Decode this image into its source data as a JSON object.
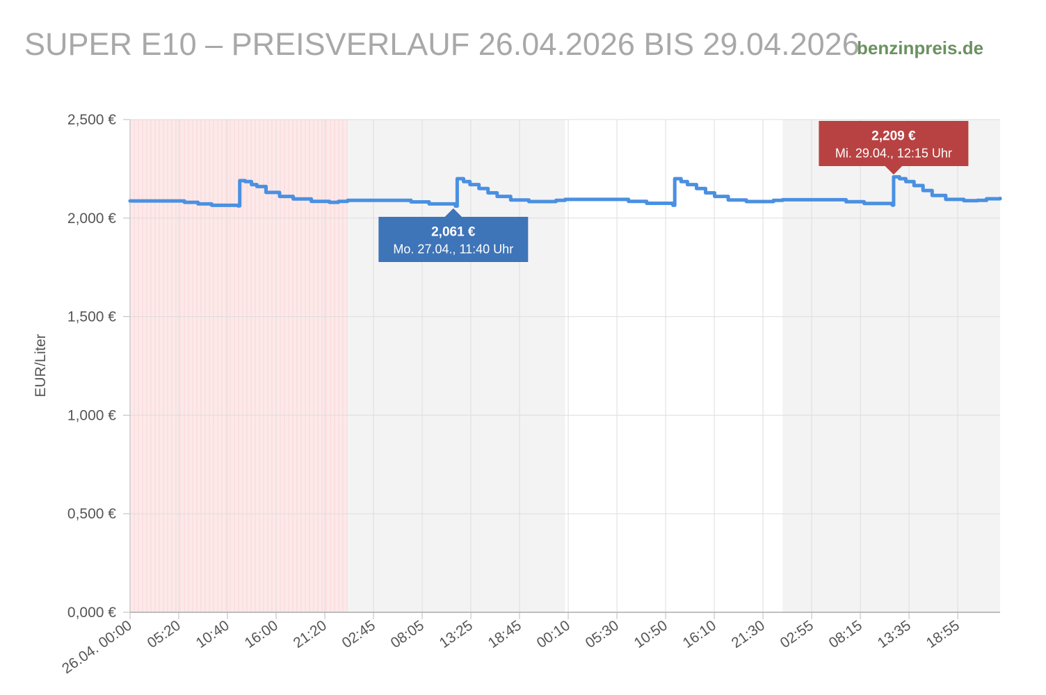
{
  "header": {
    "title": "SUPER E10 – PREISVERLAUF 26.04.2026 BIS 29.04.2026",
    "brand": "benzinpreis.de"
  },
  "colors": {
    "title": "#a8a8a8",
    "brand": "#6b9160",
    "line": "#4a90e2",
    "min_tooltip": "#3e74b8",
    "max_tooltip": "#b84242",
    "weekend_band": "#fde9e9",
    "day_band": "#f3f3f3",
    "grid": "#dddddd",
    "axis_text": "#555555"
  },
  "chart_data": {
    "type": "line",
    "title": "SUPER E10 – PREISVERLAUF 26.04.2026 BIS 29.04.2026",
    "xlabel": "",
    "ylabel": "EUR/Liter",
    "ylim": [
      0,
      2.5
    ],
    "yticks": [
      "0,000 €",
      "0,500 €",
      "1,000 €",
      "1,500 €",
      "2,000 €",
      "2,500 €"
    ],
    "xticks": [
      "26.04. 00:00",
      "05:20",
      "10:40",
      "16:00",
      "21:20",
      "02:45",
      "08:05",
      "13:25",
      "18:45",
      "00:10",
      "05:30",
      "10:50",
      "16:10",
      "21:30",
      "02:55",
      "08:15",
      "13:35",
      "18:55"
    ],
    "grid": true,
    "x_unit": "hours since 26.04. 00:00",
    "xlim": [
      0,
      96
    ],
    "bands": [
      {
        "start": 0,
        "end": 24,
        "kind": "sunday"
      },
      {
        "start": 24,
        "end": 48,
        "kind": "alternate"
      },
      {
        "start": 72,
        "end": 96,
        "kind": "alternate"
      }
    ],
    "series": [
      {
        "values": [
          [
            0,
            2.087
          ],
          [
            5.3,
            2.087
          ],
          [
            6.0,
            2.08
          ],
          [
            7.5,
            2.072
          ],
          [
            9.0,
            2.065
          ],
          [
            11.9,
            2.062
          ],
          [
            12.1,
            2.19
          ],
          [
            12.7,
            2.185
          ],
          [
            13.4,
            2.17
          ],
          [
            14.0,
            2.16
          ],
          [
            15.0,
            2.13
          ],
          [
            16.5,
            2.11
          ],
          [
            18.0,
            2.097
          ],
          [
            20.0,
            2.085
          ],
          [
            22.0,
            2.08
          ],
          [
            23.0,
            2.085
          ],
          [
            24.0,
            2.09
          ],
          [
            29.0,
            2.09
          ],
          [
            31.0,
            2.082
          ],
          [
            33.0,
            2.072
          ],
          [
            35.9,
            2.061
          ],
          [
            36.1,
            2.2
          ],
          [
            36.8,
            2.185
          ],
          [
            37.5,
            2.17
          ],
          [
            38.5,
            2.15
          ],
          [
            39.5,
            2.128
          ],
          [
            40.5,
            2.11
          ],
          [
            42.0,
            2.092
          ],
          [
            44.0,
            2.084
          ],
          [
            46.0,
            2.084
          ],
          [
            47.0,
            2.09
          ],
          [
            48.0,
            2.095
          ],
          [
            53.0,
            2.095
          ],
          [
            55.0,
            2.085
          ],
          [
            57.0,
            2.075
          ],
          [
            59.9,
            2.065
          ],
          [
            60.1,
            2.2
          ],
          [
            60.8,
            2.185
          ],
          [
            61.5,
            2.17
          ],
          [
            62.5,
            2.15
          ],
          [
            63.5,
            2.128
          ],
          [
            64.5,
            2.11
          ],
          [
            66.0,
            2.092
          ],
          [
            68.0,
            2.084
          ],
          [
            70.0,
            2.084
          ],
          [
            71.0,
            2.09
          ],
          [
            72.0,
            2.093
          ],
          [
            77.0,
            2.093
          ],
          [
            79.0,
            2.083
          ],
          [
            81.0,
            2.074
          ],
          [
            84.1,
            2.066
          ],
          [
            84.25,
            2.209
          ],
          [
            84.9,
            2.2
          ],
          [
            85.6,
            2.185
          ],
          [
            86.5,
            2.165
          ],
          [
            87.5,
            2.14
          ],
          [
            88.5,
            2.115
          ],
          [
            90.0,
            2.095
          ],
          [
            92.0,
            2.088
          ],
          [
            93.5,
            2.09
          ],
          [
            94.5,
            2.098
          ],
          [
            96.0,
            2.1
          ]
        ]
      }
    ],
    "annotations": [
      {
        "kind": "min",
        "x": 35.67,
        "y": 2.061,
        "value": "2,061 €",
        "label": "Mo. 27.04., 11:40 Uhr"
      },
      {
        "kind": "max",
        "x": 84.25,
        "y": 2.209,
        "value": "2,209 €",
        "label": "Mi. 29.04., 12:15 Uhr"
      }
    ]
  }
}
